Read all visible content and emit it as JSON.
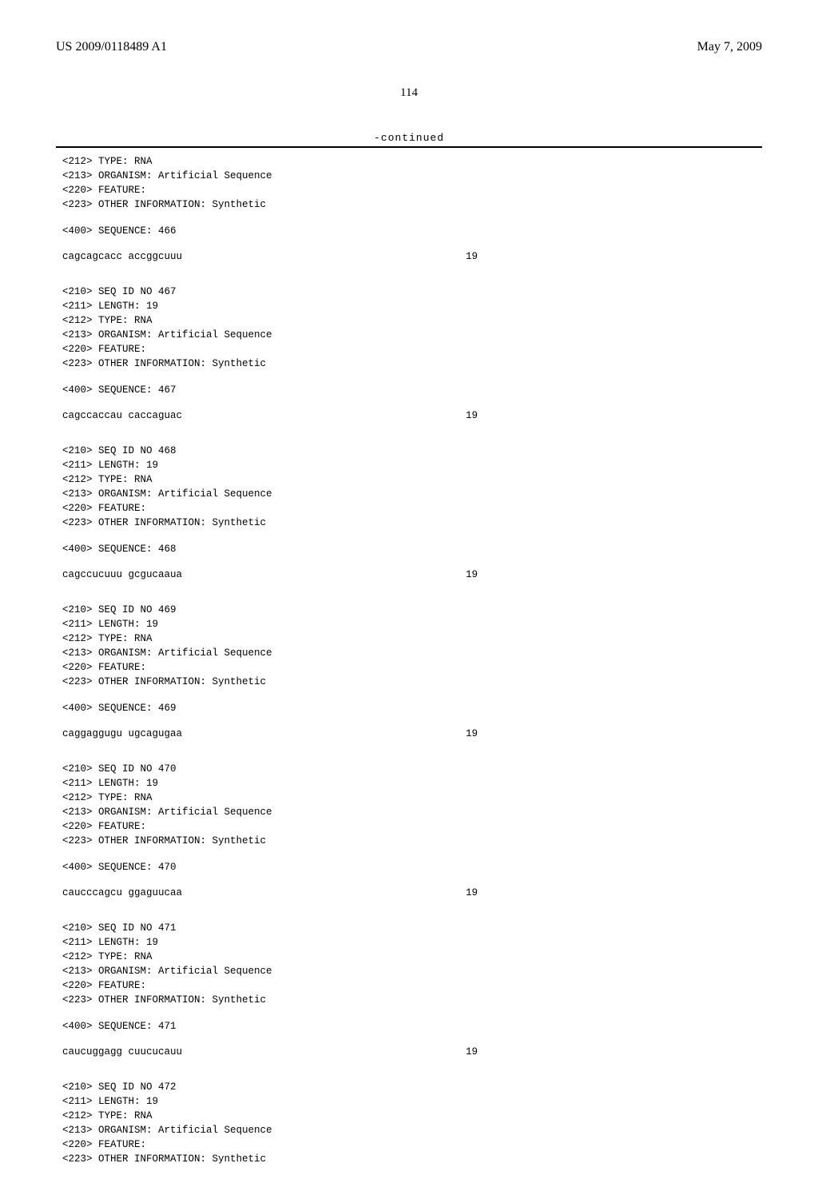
{
  "header": {
    "left": "US 2009/0118489 A1",
    "right": "May 7, 2009"
  },
  "page_number": "114",
  "continued_label": "-continued",
  "blocks": [
    {
      "type": "line",
      "text": "<212> TYPE: RNA"
    },
    {
      "type": "line",
      "text": "<213> ORGANISM: Artificial Sequence"
    },
    {
      "type": "line",
      "text": "<220> FEATURE:"
    },
    {
      "type": "line",
      "text": "<223> OTHER INFORMATION: Synthetic"
    },
    {
      "type": "gap-small"
    },
    {
      "type": "line",
      "text": "<400> SEQUENCE: 466"
    },
    {
      "type": "gap-small"
    },
    {
      "type": "seq",
      "text": "cagcagcacc accggcuuu",
      "num": "19"
    },
    {
      "type": "gap-med"
    },
    {
      "type": "line",
      "text": "<210> SEQ ID NO 467"
    },
    {
      "type": "line",
      "text": "<211> LENGTH: 19"
    },
    {
      "type": "line",
      "text": "<212> TYPE: RNA"
    },
    {
      "type": "line",
      "text": "<213> ORGANISM: Artificial Sequence"
    },
    {
      "type": "line",
      "text": "<220> FEATURE:"
    },
    {
      "type": "line",
      "text": "<223> OTHER INFORMATION: Synthetic"
    },
    {
      "type": "gap-small"
    },
    {
      "type": "line",
      "text": "<400> SEQUENCE: 467"
    },
    {
      "type": "gap-small"
    },
    {
      "type": "seq",
      "text": "cagccaccau caccaguac",
      "num": "19"
    },
    {
      "type": "gap-med"
    },
    {
      "type": "line",
      "text": "<210> SEQ ID NO 468"
    },
    {
      "type": "line",
      "text": "<211> LENGTH: 19"
    },
    {
      "type": "line",
      "text": "<212> TYPE: RNA"
    },
    {
      "type": "line",
      "text": "<213> ORGANISM: Artificial Sequence"
    },
    {
      "type": "line",
      "text": "<220> FEATURE:"
    },
    {
      "type": "line",
      "text": "<223> OTHER INFORMATION: Synthetic"
    },
    {
      "type": "gap-small"
    },
    {
      "type": "line",
      "text": "<400> SEQUENCE: 468"
    },
    {
      "type": "gap-small"
    },
    {
      "type": "seq",
      "text": "cagccucuuu gcgucaaua",
      "num": "19"
    },
    {
      "type": "gap-med"
    },
    {
      "type": "line",
      "text": "<210> SEQ ID NO 469"
    },
    {
      "type": "line",
      "text": "<211> LENGTH: 19"
    },
    {
      "type": "line",
      "text": "<212> TYPE: RNA"
    },
    {
      "type": "line",
      "text": "<213> ORGANISM: Artificial Sequence"
    },
    {
      "type": "line",
      "text": "<220> FEATURE:"
    },
    {
      "type": "line",
      "text": "<223> OTHER INFORMATION: Synthetic"
    },
    {
      "type": "gap-small"
    },
    {
      "type": "line",
      "text": "<400> SEQUENCE: 469"
    },
    {
      "type": "gap-small"
    },
    {
      "type": "seq",
      "text": "caggaggugu ugcagugaa",
      "num": "19"
    },
    {
      "type": "gap-med"
    },
    {
      "type": "line",
      "text": "<210> SEQ ID NO 470"
    },
    {
      "type": "line",
      "text": "<211> LENGTH: 19"
    },
    {
      "type": "line",
      "text": "<212> TYPE: RNA"
    },
    {
      "type": "line",
      "text": "<213> ORGANISM: Artificial Sequence"
    },
    {
      "type": "line",
      "text": "<220> FEATURE:"
    },
    {
      "type": "line",
      "text": "<223> OTHER INFORMATION: Synthetic"
    },
    {
      "type": "gap-small"
    },
    {
      "type": "line",
      "text": "<400> SEQUENCE: 470"
    },
    {
      "type": "gap-small"
    },
    {
      "type": "seq",
      "text": "caucccagcu ggaguucaa",
      "num": "19"
    },
    {
      "type": "gap-med"
    },
    {
      "type": "line",
      "text": "<210> SEQ ID NO 471"
    },
    {
      "type": "line",
      "text": "<211> LENGTH: 19"
    },
    {
      "type": "line",
      "text": "<212> TYPE: RNA"
    },
    {
      "type": "line",
      "text": "<213> ORGANISM: Artificial Sequence"
    },
    {
      "type": "line",
      "text": "<220> FEATURE:"
    },
    {
      "type": "line",
      "text": "<223> OTHER INFORMATION: Synthetic"
    },
    {
      "type": "gap-small"
    },
    {
      "type": "line",
      "text": "<400> SEQUENCE: 471"
    },
    {
      "type": "gap-small"
    },
    {
      "type": "seq",
      "text": "caucuggagg cuucucauu",
      "num": "19"
    },
    {
      "type": "gap-med"
    },
    {
      "type": "line",
      "text": "<210> SEQ ID NO 472"
    },
    {
      "type": "line",
      "text": "<211> LENGTH: 19"
    },
    {
      "type": "line",
      "text": "<212> TYPE: RNA"
    },
    {
      "type": "line",
      "text": "<213> ORGANISM: Artificial Sequence"
    },
    {
      "type": "line",
      "text": "<220> FEATURE:"
    },
    {
      "type": "line",
      "text": "<223> OTHER INFORMATION: Synthetic"
    }
  ]
}
